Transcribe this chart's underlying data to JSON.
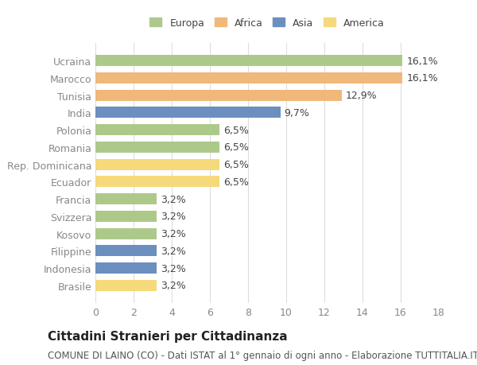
{
  "countries": [
    "Ucraina",
    "Marocco",
    "Tunisia",
    "India",
    "Polonia",
    "Romania",
    "Rep. Dominicana",
    "Ecuador",
    "Francia",
    "Svizzera",
    "Kosovo",
    "Filippine",
    "Indonesia",
    "Brasile"
  ],
  "values": [
    16.1,
    16.1,
    12.9,
    9.7,
    6.5,
    6.5,
    6.5,
    6.5,
    3.2,
    3.2,
    3.2,
    3.2,
    3.2,
    3.2
  ],
  "labels": [
    "16,1%",
    "16,1%",
    "12,9%",
    "9,7%",
    "6,5%",
    "6,5%",
    "6,5%",
    "6,5%",
    "3,2%",
    "3,2%",
    "3,2%",
    "3,2%",
    "3,2%",
    "3,2%"
  ],
  "continents": [
    "Europa",
    "Africa",
    "Africa",
    "Asia",
    "Europa",
    "Europa",
    "America",
    "America",
    "Europa",
    "Europa",
    "Europa",
    "Asia",
    "Asia",
    "America"
  ],
  "colors": {
    "Europa": "#adc98a",
    "Africa": "#f0b87a",
    "Asia": "#6b8fbf",
    "America": "#f5d97a"
  },
  "legend_order": [
    "Europa",
    "Africa",
    "Asia",
    "America"
  ],
  "title": "Cittadini Stranieri per Cittadinanza",
  "subtitle": "COMUNE DI LAINO (CO) - Dati ISTAT al 1° gennaio di ogni anno - Elaborazione TUTTITALIA.IT",
  "xlim": [
    0,
    18
  ],
  "xticks": [
    0,
    2,
    4,
    6,
    8,
    10,
    12,
    14,
    16,
    18
  ],
  "background_color": "#ffffff",
  "grid_color": "#dddddd",
  "bar_height": 0.65,
  "label_fontsize": 9,
  "tick_fontsize": 9,
  "title_fontsize": 11,
  "subtitle_fontsize": 8.5
}
